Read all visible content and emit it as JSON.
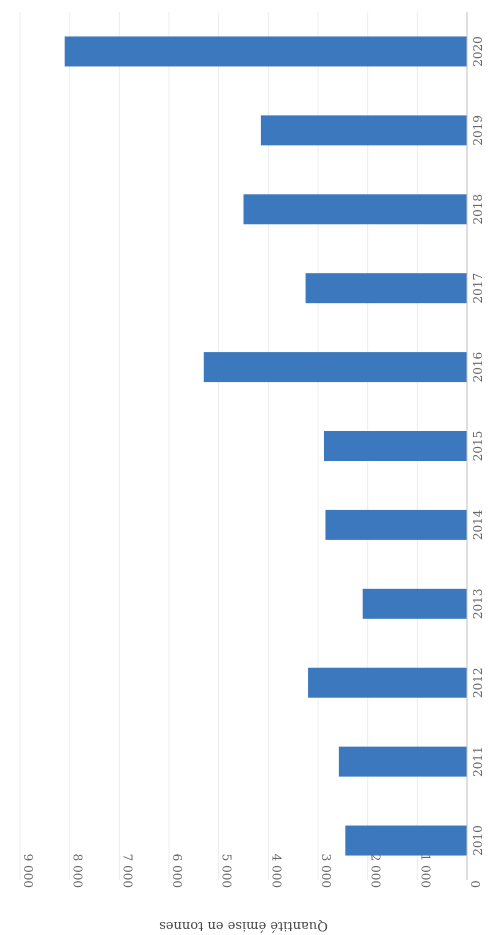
{
  "chart_data": {
    "type": "bar",
    "orientation": "rotated",
    "categories": [
      "2010",
      "2011",
      "2012",
      "2013",
      "2014",
      "2015",
      "2016",
      "2017",
      "2018",
      "2019",
      "2020"
    ],
    "values": [
      2450,
      2580,
      3200,
      2100,
      2850,
      2880,
      5300,
      3250,
      4500,
      4150,
      8100
    ],
    "ylabel": "Quantité émise en tonnes",
    "ylim": [
      0,
      9000
    ],
    "yticks": [
      0,
      1000,
      2000,
      3000,
      4000,
      5000,
      6000,
      7000,
      8000,
      9000
    ],
    "ytick_labels": [
      "0",
      "1 000",
      "2 000",
      "3 000",
      "4 000",
      "5 000",
      "6 000",
      "7 000",
      "8 000",
      "9 000"
    ],
    "grid": true,
    "colors": {
      "bar": "#3c78bd"
    }
  }
}
